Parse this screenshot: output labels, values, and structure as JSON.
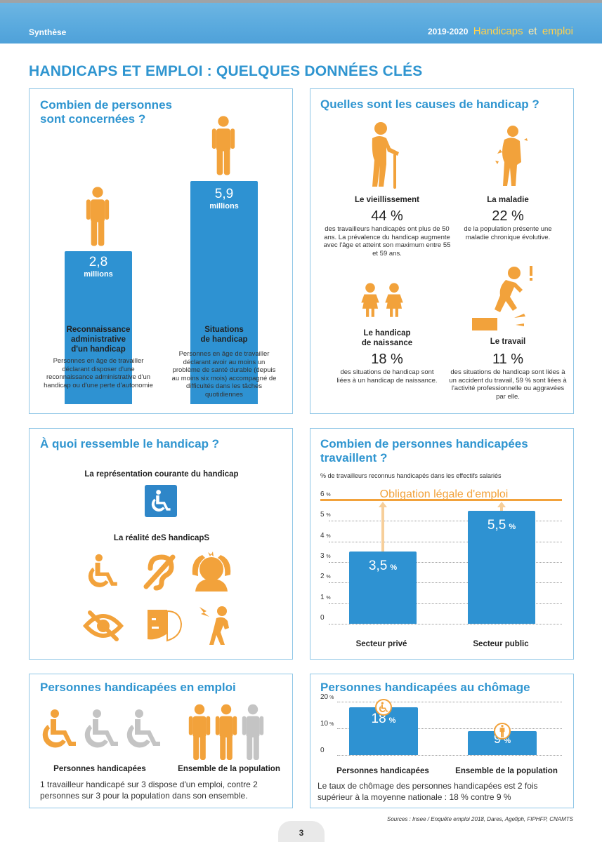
{
  "header": {
    "section": "Synthèse",
    "years": "2019-2020",
    "title_part1": "Handicaps",
    "title_part2": "et",
    "title_part3": "emploi"
  },
  "main_title": "HANDICAPS ET EMPLOI : QUELQUES DONNÉES CLÉS",
  "concerned": {
    "title_line1": "Combien de personnes",
    "title_line2": "sont concernées ?",
    "bar1": {
      "value": "2,8",
      "unit": "millions",
      "label_line1": "Reconnaissance",
      "label_line2": "administrative",
      "label_line3": "d'un handicap",
      "desc": "Personnes en âge de travailler déclarant disposer d'une reconnaissance administrative d'un handicap ou d'une perte d'autonomie"
    },
    "bar2": {
      "value": "5,9",
      "unit": "millions",
      "label_line1": "Situations",
      "label_line2": "de handicap",
      "desc": "Personnes en âge de travailler déclarant avoir au moins un problème de santé durable (depuis au moins six mois) accompagné de difficultés dans les tâches quotidiennes"
    }
  },
  "causes": {
    "title": "Quelles sont les causes de handicap ?",
    "aging": {
      "label": "Le vieillissement",
      "pct": "44 %",
      "desc": "des travailleurs handicapés ont plus de 50 ans. La prévalence du handicap augmente avec l'âge et atteint son maximum entre 55 et 59 ans."
    },
    "disease": {
      "label": "La maladie",
      "pct": "22 %",
      "desc": "de la population présente une maladie chronique évolutive."
    },
    "birth": {
      "label_line1": "Le handicap",
      "label_line2": "de naissance",
      "pct": "18 %",
      "desc": "des situations de handicap sont liées à un handicap de naissance."
    },
    "work": {
      "label": "Le travail",
      "pct": "11 %",
      "desc": "des situations de handicap sont liées à un accident du travail, 59 % sont liées à l'activité professionnelle ou aggravées par elle."
    }
  },
  "looks": {
    "title": "À quoi ressemble le handicap ?",
    "current_label": "La représentation courante du handicap",
    "reality_label": "La réalité deS handicapS",
    "icons": [
      "wheelchair-icon",
      "hearing-impaired-icon",
      "mental-distress-icon",
      "visual-impaired-icon",
      "mask-face-icon",
      "chronic-pain-icon"
    ]
  },
  "working": {
    "title_line1": "Combien de personnes handicapées",
    "title_line2": "travaillent ?",
    "subtitle": "% de travailleurs reconnus handicapés dans les effectifs salariés",
    "obligation_label": "Obligation légale d'emploi",
    "bar1_value": "3,5",
    "bar1_unit": "%",
    "bar2_value": "5,5",
    "bar2_unit": "%",
    "ticks": [
      "0",
      "1",
      "2",
      "3",
      "4",
      "5",
      "6"
    ],
    "tick_unit": "%"
  },
  "employed": {
    "title": "Personnes handicapées en emploi",
    "label_left": "Personnes handicapées",
    "label_right": "Ensemble de la population",
    "note": "1 travailleur handicapé sur 3 dispose d'un emploi, contre 2 personnes sur 3 pour la population dans son ensemble."
  },
  "unemployed": {
    "title": "Personnes handicapées au chômage",
    "ticks": [
      "0",
      "10",
      "20"
    ],
    "tick_unit": "%",
    "bar1_value": "18",
    "bar1_unit": "%",
    "bar2_value": "9",
    "bar2_unit": "%",
    "label_left": "Personnes handicapées",
    "label_right": "Ensemble de la population",
    "note": "Le taux de chômage des personnes handicapées est 2 fois supérieur à la moyenne nationale : 18 % contre 9 %"
  },
  "chart_data": [
    {
      "type": "bar",
      "title": "Combien de personnes handicapées travaillent ?",
      "subtitle": "% de travailleurs reconnus handicapés dans les effectifs salariés",
      "categories": [
        "Secteur privé",
        "Secteur public"
      ],
      "values": [
        3.5,
        5.5
      ],
      "ylim": [
        0,
        6
      ],
      "yticks": [
        0,
        1,
        2,
        3,
        4,
        5,
        6
      ],
      "reference_line": {
        "label": "Obligation légale d'emploi",
        "value": 6
      },
      "grid": true
    },
    {
      "type": "bar",
      "title": "Personnes handicapées au chômage",
      "categories": [
        "Personnes handicapées",
        "Ensemble de la population"
      ],
      "values": [
        18,
        9
      ],
      "ylim": [
        0,
        20
      ],
      "yticks": [
        0,
        10,
        20
      ],
      "grid": true
    }
  ],
  "footer": {
    "sources": "Sources : Insee / Enquête emploi 2018, Dares, Agefiph, FIPHFP, CNAMTS",
    "page": "3"
  },
  "colors": {
    "blue": "#2f95d0",
    "bar_blue": "#2e92d2",
    "orange": "#f2a23b",
    "grey": "#bdbdbd"
  }
}
